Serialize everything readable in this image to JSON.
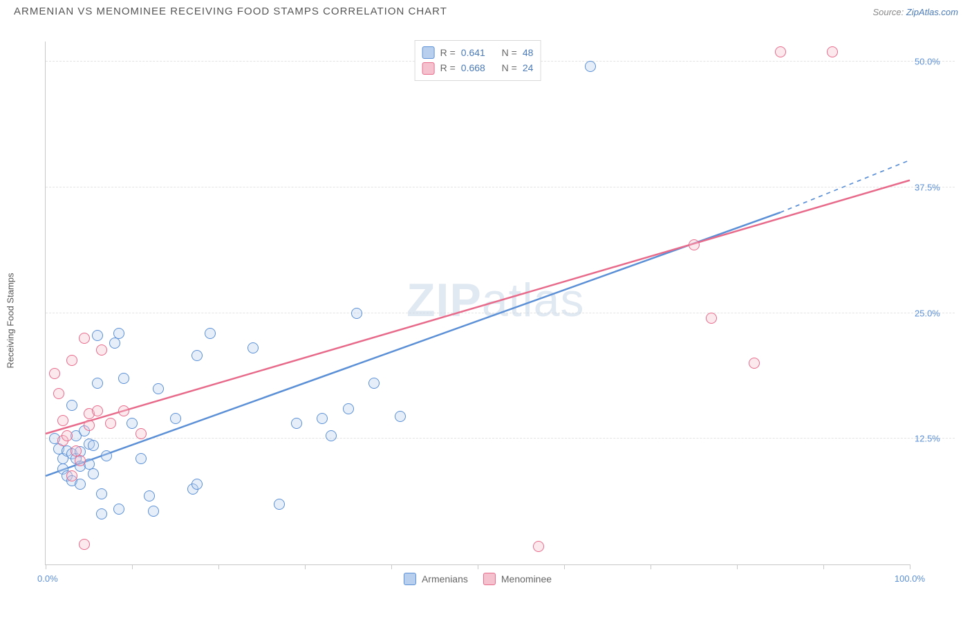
{
  "header": {
    "title": "ARMENIAN VS MENOMINEE RECEIVING FOOD STAMPS CORRELATION CHART",
    "source_prefix": "Source: ",
    "source_link": "ZipAtlas.com"
  },
  "watermark": {
    "bold": "ZIP",
    "rest": "atlas"
  },
  "chart": {
    "type": "scatter-with-regression",
    "ylabel": "Receiving Food Stamps",
    "xlim": [
      0,
      100
    ],
    "ylim": [
      0,
      52
    ],
    "xtick_positions": [
      0,
      10,
      20,
      30,
      40,
      50,
      60,
      70,
      80,
      90,
      100
    ],
    "x_start_label": "0.0%",
    "x_end_label": "100.0%",
    "yticks": [
      {
        "v": 12.5,
        "label": "12.5%"
      },
      {
        "v": 25.0,
        "label": "25.0%"
      },
      {
        "v": 37.5,
        "label": "37.5%"
      },
      {
        "v": 50.0,
        "label": "50.0%"
      }
    ],
    "background_color": "#ffffff",
    "grid_color": "#e2e2e2",
    "axis_color": "#c8c8c8",
    "marker_radius": 7,
    "marker_border_width": 1.5,
    "marker_fill_opacity": 0.35,
    "line_width": 2.5,
    "series": [
      {
        "key": "armenians",
        "label": "Armenians",
        "color": "#5b8fd6",
        "fill": "#b8d0ee",
        "R": "0.641",
        "N": "48",
        "regression": {
          "x1": 0,
          "y1": 8.8,
          "x2": 85,
          "y2": 35.0,
          "dash_to_x": 100,
          "dash_to_y": 40.2
        },
        "points": [
          {
            "x": 1,
            "y": 12.5
          },
          {
            "x": 1.5,
            "y": 11.5
          },
          {
            "x": 2,
            "y": 10.5
          },
          {
            "x": 2,
            "y": 9.5
          },
          {
            "x": 2.5,
            "y": 11.3
          },
          {
            "x": 2.5,
            "y": 8.8
          },
          {
            "x": 3,
            "y": 15.8
          },
          {
            "x": 3,
            "y": 11.0
          },
          {
            "x": 3,
            "y": 8.3
          },
          {
            "x": 3.5,
            "y": 10.5
          },
          {
            "x": 3.5,
            "y": 12.8
          },
          {
            "x": 4,
            "y": 11.2
          },
          {
            "x": 4,
            "y": 9.8
          },
          {
            "x": 4,
            "y": 8.0
          },
          {
            "x": 4.5,
            "y": 13.3
          },
          {
            "x": 5,
            "y": 12.0
          },
          {
            "x": 5,
            "y": 10.0
          },
          {
            "x": 5.5,
            "y": 9.0
          },
          {
            "x": 5.5,
            "y": 11.8
          },
          {
            "x": 6,
            "y": 22.8
          },
          {
            "x": 6,
            "y": 18.0
          },
          {
            "x": 6.5,
            "y": 7.0
          },
          {
            "x": 6.5,
            "y": 5.0
          },
          {
            "x": 7,
            "y": 10.8
          },
          {
            "x": 8,
            "y": 22.0
          },
          {
            "x": 8.5,
            "y": 5.5
          },
          {
            "x": 8.5,
            "y": 23.0
          },
          {
            "x": 9,
            "y": 18.5
          },
          {
            "x": 10,
            "y": 14.0
          },
          {
            "x": 11,
            "y": 10.5
          },
          {
            "x": 12,
            "y": 6.8
          },
          {
            "x": 12.5,
            "y": 5.3
          },
          {
            "x": 13,
            "y": 17.5
          },
          {
            "x": 15,
            "y": 14.5
          },
          {
            "x": 17,
            "y": 7.5
          },
          {
            "x": 17.5,
            "y": 8.0
          },
          {
            "x": 17.5,
            "y": 20.8
          },
          {
            "x": 19,
            "y": 23.0
          },
          {
            "x": 24,
            "y": 21.5
          },
          {
            "x": 27,
            "y": 6.0
          },
          {
            "x": 29,
            "y": 14.0
          },
          {
            "x": 32,
            "y": 14.5
          },
          {
            "x": 33,
            "y": 12.8
          },
          {
            "x": 35,
            "y": 15.5
          },
          {
            "x": 36,
            "y": 25.0
          },
          {
            "x": 38,
            "y": 18.0
          },
          {
            "x": 41,
            "y": 14.7
          },
          {
            "x": 63,
            "y": 49.5
          }
        ]
      },
      {
        "key": "menominee",
        "label": "Menominee",
        "color": "#e86a8a",
        "fill": "#f6c1cf",
        "R": "0.668",
        "N": "24",
        "regression": {
          "x1": 0,
          "y1": 13.0,
          "x2": 100,
          "y2": 38.2
        },
        "points": [
          {
            "x": 1,
            "y": 19.0
          },
          {
            "x": 1.5,
            "y": 17.0
          },
          {
            "x": 2,
            "y": 12.3
          },
          {
            "x": 2,
            "y": 14.3
          },
          {
            "x": 2.5,
            "y": 12.8
          },
          {
            "x": 3,
            "y": 20.3
          },
          {
            "x": 3,
            "y": 8.8
          },
          {
            "x": 3.5,
            "y": 11.3
          },
          {
            "x": 4,
            "y": 10.3
          },
          {
            "x": 4.5,
            "y": 22.5
          },
          {
            "x": 4.5,
            "y": 2.0
          },
          {
            "x": 5,
            "y": 13.8
          },
          {
            "x": 5,
            "y": 15.0
          },
          {
            "x": 6,
            "y": 15.3
          },
          {
            "x": 6.5,
            "y": 21.3
          },
          {
            "x": 7.5,
            "y": 14.0
          },
          {
            "x": 9,
            "y": 15.3
          },
          {
            "x": 11,
            "y": 13.0
          },
          {
            "x": 57,
            "y": 1.8
          },
          {
            "x": 75,
            "y": 31.8
          },
          {
            "x": 77,
            "y": 24.5
          },
          {
            "x": 82,
            "y": 20.0
          },
          {
            "x": 85,
            "y": 51.0
          },
          {
            "x": 91,
            "y": 51.0
          }
        ]
      }
    ],
    "legend_top": {
      "R_label": "R  =",
      "N_label": "N  ="
    },
    "legend_bottom": [
      {
        "series": "armenians"
      },
      {
        "series": "menominee"
      }
    ]
  }
}
